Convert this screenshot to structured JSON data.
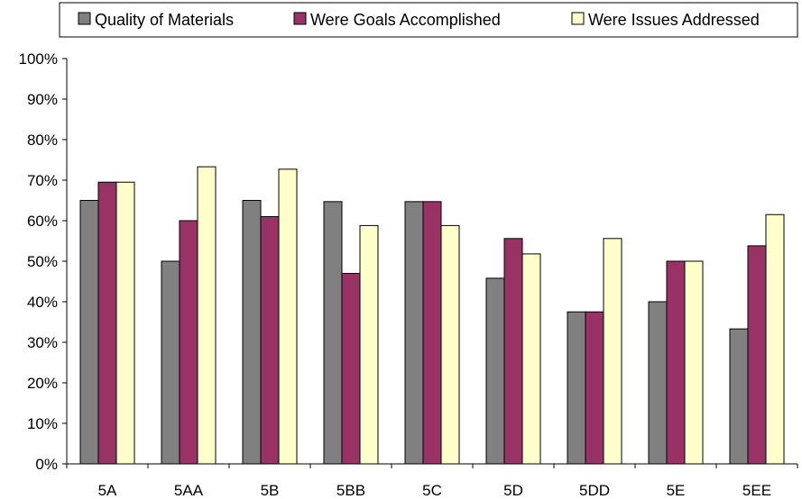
{
  "chart_data": {
    "type": "bar",
    "title": "",
    "xlabel": "",
    "ylabel": "",
    "categories": [
      "5A",
      "5AA",
      "5B",
      "5BB",
      "5C",
      "5D",
      "5DD",
      "5E",
      "5EE"
    ],
    "series": [
      {
        "name": "Quality of Materials",
        "color": "#808080",
        "values": [
          65,
          50,
          65,
          64.7,
          64.7,
          45.8,
          37.5,
          40,
          33.3
        ]
      },
      {
        "name": "Were Goals Accomplished",
        "color": "#993366",
        "values": [
          69.5,
          60,
          61,
          47,
          64.7,
          55.6,
          37.5,
          50,
          53.8
        ]
      },
      {
        "name": "Were Issues Addressed",
        "color": "#ffffcc",
        "values": [
          69.5,
          73.3,
          72.7,
          58.8,
          58.8,
          51.8,
          55.6,
          50,
          61.5
        ]
      }
    ],
    "ylim": [
      0,
      100
    ],
    "yticks": [
      "0%",
      "10%",
      "20%",
      "30%",
      "40%",
      "50%",
      "60%",
      "70%",
      "80%",
      "90%",
      "100%"
    ],
    "grid": false,
    "legend_position": "top"
  }
}
